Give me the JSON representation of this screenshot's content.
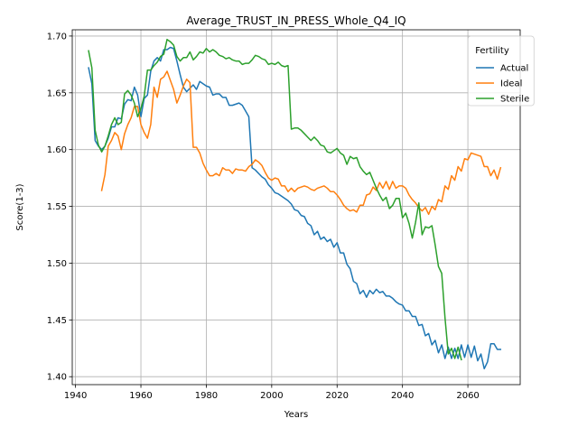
{
  "chart_data": {
    "type": "line",
    "title": "Average_TRUST_IN_PRESS_Whole_Q4_IQ",
    "xlabel": "Years",
    "ylabel": "Score(1-3)",
    "xlim": [
      1939,
      2076
    ],
    "ylim": [
      1.393,
      1.7055
    ],
    "xticks": [
      1940,
      1960,
      1980,
      2000,
      2020,
      2040,
      2060
    ],
    "xtick_labels": [
      "1940",
      "1960",
      "1980",
      "2000",
      "2020",
      "2040",
      "2060"
    ],
    "yticks": [
      1.4,
      1.45,
      1.5,
      1.55,
      1.6,
      1.65,
      1.7
    ],
    "ytick_labels": [
      "1.40",
      "1.45",
      "1.50",
      "1.55",
      "1.60",
      "1.65",
      "1.70"
    ],
    "grid": true,
    "legend": {
      "title": "Fertility",
      "position": "top-right"
    },
    "series": [
      {
        "name": "Actual",
        "color": "#1f77b4",
        "x": [
          1944,
          1945,
          1946,
          1947,
          1948,
          1949,
          1950,
          1951,
          1952,
          1953,
          1954,
          1955,
          1956,
          1957,
          1958,
          1959,
          1960,
          1961,
          1962,
          1963,
          1964,
          1965,
          1966,
          1967,
          1968,
          1969,
          1970,
          1971,
          1972,
          1973,
          1974,
          1975,
          1976,
          1977,
          1978,
          1979,
          1980,
          1981,
          1982,
          1983,
          1984,
          1985,
          1986,
          1987,
          1988,
          1989,
          1990,
          1991,
          1992,
          1993,
          1994,
          1995,
          1996,
          1997,
          1998,
          1999,
          2000,
          2001,
          2002,
          2003,
          2004,
          2005,
          2006,
          2007,
          2008,
          2009,
          2010,
          2011,
          2012,
          2013,
          2014,
          2015,
          2016,
          2017,
          2018,
          2019,
          2020,
          2021,
          2022,
          2023,
          2024,
          2025,
          2026,
          2027,
          2028,
          2029,
          2030,
          2031,
          2032,
          2033,
          2034,
          2035,
          2036,
          2037,
          2038,
          2039,
          2040,
          2041,
          2042,
          2043,
          2044,
          2045,
          2046,
          2047,
          2048,
          2049,
          2050,
          2051,
          2052,
          2053,
          2054,
          2055,
          2056,
          2057,
          2058,
          2059,
          2060,
          2061,
          2062,
          2063,
          2064,
          2065,
          2066,
          2067,
          2068,
          2069,
          2070
        ],
        "y": [
          1.672,
          1.658,
          1.608,
          1.603,
          1.6,
          1.603,
          1.61,
          1.62,
          1.62,
          1.628,
          1.627,
          1.64,
          1.644,
          1.643,
          1.655,
          1.648,
          1.629,
          1.645,
          1.648,
          1.669,
          1.678,
          1.681,
          1.678,
          1.688,
          1.688,
          1.69,
          1.689,
          1.678,
          1.666,
          1.655,
          1.651,
          1.654,
          1.657,
          1.653,
          1.66,
          1.658,
          1.656,
          1.655,
          1.648,
          1.649,
          1.649,
          1.646,
          1.646,
          1.639,
          1.639,
          1.64,
          1.641,
          1.639,
          1.634,
          1.629,
          1.584,
          1.582,
          1.579,
          1.576,
          1.574,
          1.569,
          1.566,
          1.562,
          1.561,
          1.559,
          1.557,
          1.555,
          1.552,
          1.547,
          1.546,
          1.542,
          1.541,
          1.535,
          1.533,
          1.525,
          1.528,
          1.521,
          1.523,
          1.519,
          1.521,
          1.514,
          1.518,
          1.509,
          1.509,
          1.499,
          1.495,
          1.484,
          1.482,
          1.473,
          1.476,
          1.47,
          1.476,
          1.473,
          1.477,
          1.474,
          1.475,
          1.471,
          1.471,
          1.469,
          1.466,
          1.464,
          1.463,
          1.458,
          1.458,
          1.453,
          1.453,
          1.445,
          1.446,
          1.436,
          1.438,
          1.428,
          1.432,
          1.421,
          1.428,
          1.416,
          1.426,
          1.416,
          1.425,
          1.416,
          1.428,
          1.417,
          1.428,
          1.417,
          1.427,
          1.414,
          1.42,
          1.407,
          1.413,
          1.429,
          1.429,
          1.424,
          1.424
        ]
      },
      {
        "name": "Ideal",
        "color": "#ff7f0e",
        "x": [
          1948,
          1949,
          1950,
          1951,
          1952,
          1953,
          1954,
          1955,
          1956,
          1957,
          1958,
          1959,
          1960,
          1961,
          1962,
          1963,
          1964,
          1965,
          1966,
          1967,
          1968,
          1969,
          1970,
          1971,
          1972,
          1973,
          1974,
          1975,
          1976,
          1977,
          1978,
          1979,
          1980,
          1981,
          1982,
          1983,
          1984,
          1985,
          1986,
          1987,
          1988,
          1989,
          1990,
          1991,
          1992,
          1993,
          1994,
          1995,
          1996,
          1997,
          1998,
          1999,
          2000,
          2001,
          2002,
          2003,
          2004,
          2005,
          2006,
          2007,
          2008,
          2009,
          2010,
          2011,
          2012,
          2013,
          2014,
          2015,
          2016,
          2017,
          2018,
          2019,
          2020,
          2021,
          2022,
          2023,
          2024,
          2025,
          2026,
          2027,
          2028,
          2029,
          2030,
          2031,
          2032,
          2033,
          2034,
          2035,
          2036,
          2037,
          2038,
          2039,
          2040,
          2041,
          2042,
          2043,
          2044,
          2045,
          2046,
          2047,
          2048,
          2049,
          2050,
          2051,
          2052,
          2053,
          2054,
          2055,
          2056,
          2057,
          2058,
          2059,
          2060,
          2061,
          2062,
          2063,
          2064,
          2065,
          2066,
          2067,
          2068,
          2069,
          2070
        ],
        "y": [
          1.564,
          1.578,
          1.603,
          1.608,
          1.615,
          1.612,
          1.6,
          1.614,
          1.622,
          1.628,
          1.638,
          1.638,
          1.622,
          1.615,
          1.61,
          1.622,
          1.655,
          1.646,
          1.662,
          1.664,
          1.669,
          1.661,
          1.653,
          1.641,
          1.648,
          1.656,
          1.662,
          1.659,
          1.602,
          1.602,
          1.597,
          1.588,
          1.582,
          1.577,
          1.577,
          1.579,
          1.577,
          1.584,
          1.582,
          1.582,
          1.579,
          1.583,
          1.582,
          1.582,
          1.581,
          1.585,
          1.587,
          1.591,
          1.589,
          1.586,
          1.58,
          1.575,
          1.573,
          1.575,
          1.574,
          1.568,
          1.568,
          1.563,
          1.566,
          1.563,
          1.566,
          1.567,
          1.568,
          1.567,
          1.565,
          1.564,
          1.566,
          1.567,
          1.568,
          1.566,
          1.563,
          1.563,
          1.56,
          1.556,
          1.551,
          1.548,
          1.546,
          1.547,
          1.545,
          1.551,
          1.551,
          1.56,
          1.561,
          1.567,
          1.564,
          1.571,
          1.566,
          1.572,
          1.565,
          1.572,
          1.566,
          1.568,
          1.568,
          1.566,
          1.56,
          1.556,
          1.553,
          1.549,
          1.546,
          1.549,
          1.543,
          1.55,
          1.547,
          1.556,
          1.554,
          1.568,
          1.565,
          1.577,
          1.573,
          1.585,
          1.581,
          1.592,
          1.591,
          1.597,
          1.596,
          1.595,
          1.594,
          1.585,
          1.585,
          1.577,
          1.582,
          1.574,
          1.584
        ]
      },
      {
        "name": "Sterile",
        "color": "#2ca02c",
        "x": [
          1944,
          1945,
          1946,
          1947,
          1948,
          1949,
          1950,
          1951,
          1952,
          1953,
          1954,
          1955,
          1956,
          1957,
          1958,
          1959,
          1960,
          1961,
          1962,
          1963,
          1964,
          1965,
          1966,
          1967,
          1968,
          1969,
          1970,
          1971,
          1972,
          1973,
          1974,
          1975,
          1976,
          1977,
          1978,
          1979,
          1980,
          1981,
          1982,
          1983,
          1984,
          1985,
          1986,
          1987,
          1988,
          1989,
          1990,
          1991,
          1992,
          1993,
          1994,
          1995,
          1996,
          1997,
          1998,
          1999,
          2000,
          2001,
          2002,
          2003,
          2004,
          2005,
          2006,
          2007,
          2008,
          2009,
          2010,
          2011,
          2012,
          2013,
          2014,
          2015,
          2016,
          2017,
          2018,
          2019,
          2020,
          2021,
          2022,
          2023,
          2024,
          2025,
          2026,
          2027,
          2028,
          2029,
          2030,
          2031,
          2032,
          2033,
          2034,
          2035,
          2036,
          2037,
          2038,
          2039,
          2040,
          2041,
          2042,
          2043,
          2044,
          2045,
          2046,
          2047,
          2048,
          2049,
          2050,
          2051,
          2052,
          2053,
          2054,
          2055,
          2056,
          2057,
          2058
        ],
        "y": [
          1.687,
          1.672,
          1.617,
          1.604,
          1.598,
          1.603,
          1.612,
          1.622,
          1.628,
          1.622,
          1.624,
          1.649,
          1.652,
          1.648,
          1.641,
          1.629,
          1.636,
          1.647,
          1.67,
          1.67,
          1.674,
          1.677,
          1.682,
          1.684,
          1.697,
          1.695,
          1.692,
          1.682,
          1.678,
          1.681,
          1.681,
          1.686,
          1.679,
          1.682,
          1.686,
          1.685,
          1.689,
          1.686,
          1.688,
          1.686,
          1.683,
          1.682,
          1.68,
          1.681,
          1.679,
          1.678,
          1.678,
          1.675,
          1.676,
          1.676,
          1.679,
          1.683,
          1.682,
          1.68,
          1.679,
          1.675,
          1.676,
          1.675,
          1.677,
          1.674,
          1.673,
          1.674,
          1.618,
          1.619,
          1.619,
          1.617,
          1.614,
          1.611,
          1.608,
          1.611,
          1.608,
          1.604,
          1.603,
          1.598,
          1.597,
          1.599,
          1.601,
          1.597,
          1.595,
          1.587,
          1.594,
          1.592,
          1.593,
          1.585,
          1.581,
          1.578,
          1.58,
          1.573,
          1.566,
          1.56,
          1.555,
          1.558,
          1.548,
          1.551,
          1.557,
          1.557,
          1.54,
          1.544,
          1.535,
          1.522,
          1.536,
          1.553,
          1.525,
          1.532,
          1.531,
          1.533,
          1.516,
          1.497,
          1.491,
          1.452,
          1.42,
          1.425,
          1.416,
          1.426,
          1.415
        ]
      }
    ]
  }
}
